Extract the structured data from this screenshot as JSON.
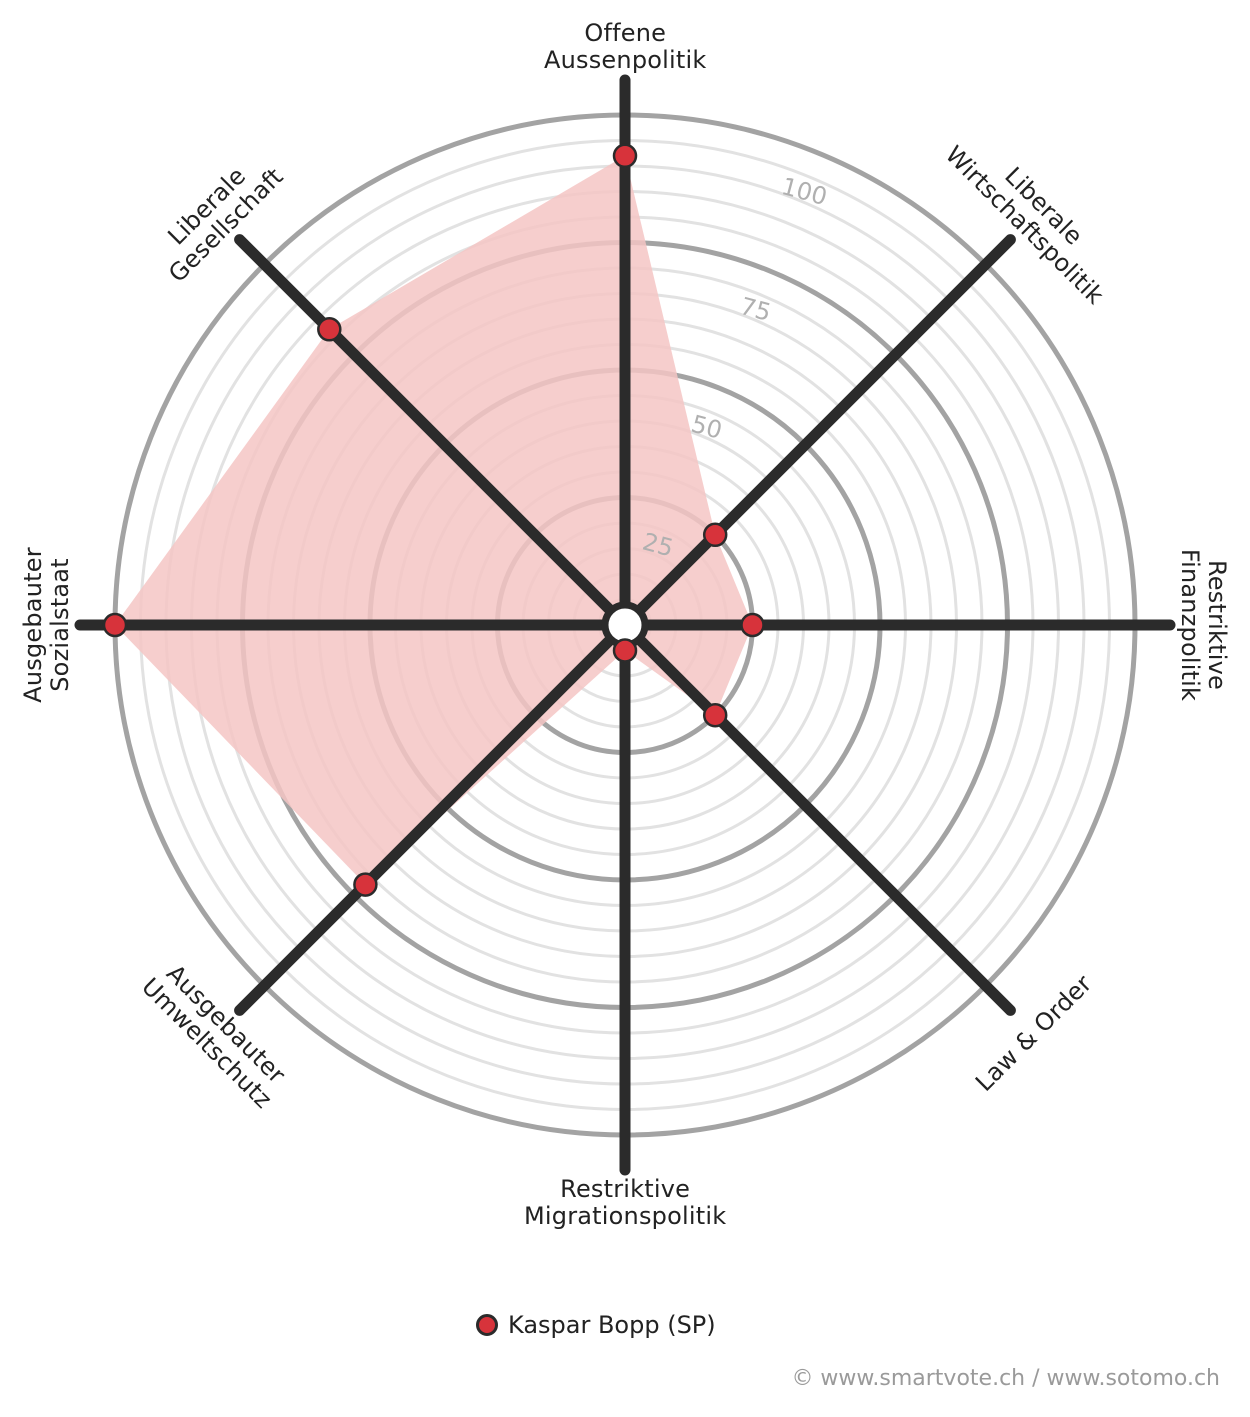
{
  "chart_data": {
    "type": "radar",
    "axes": [
      "Offene\nAussenpolitik",
      "Liberale\nWirtschaftspolitik",
      "Restriktive\nFinanzpolitik",
      "Law & Order",
      "Restriktive\nMigrationspolitik",
      "Ausgebauter\nUmweltschutz",
      "Ausgebauter\nSozialstaat",
      "Liberale\nGesellschaft"
    ],
    "series": [
      {
        "name": "Kaspar Bopp (SP)",
        "values": [
          92,
          25,
          25,
          25,
          5,
          72,
          100,
          82
        ]
      }
    ],
    "rlim": [
      0,
      100
    ],
    "rticks": [
      25,
      50,
      75,
      100
    ],
    "tick_labels": [
      "25",
      "50",
      "75",
      "100"
    ],
    "minor_rings": true,
    "legend_position": "bottom",
    "colors": {
      "fill": "#f4c6c4",
      "marker": "#d7333b",
      "axis": "#2b2b2b",
      "major_ring": "#a3a3a3",
      "minor_ring": "#e2e2e2",
      "tick_text": "#b0b0b0"
    }
  },
  "legend": {
    "label": "Kaspar Bopp (SP)"
  },
  "footer": {
    "copyright": "© www.smartvote.ch / www.sotomo.ch"
  }
}
